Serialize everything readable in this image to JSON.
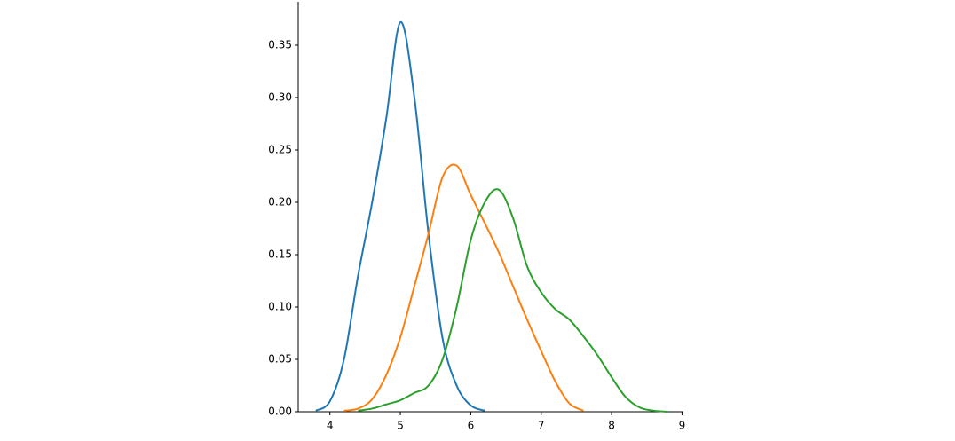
{
  "chart_data": {
    "type": "line",
    "x": [
      3.8,
      4.0,
      4.2,
      4.4,
      4.6,
      4.8,
      5.0,
      5.2,
      5.4,
      5.6,
      5.8,
      6.0,
      6.2,
      6.4,
      6.6,
      6.8,
      7.0,
      7.2,
      7.4,
      7.6,
      7.8,
      8.0,
      8.2,
      8.4,
      8.6,
      8.8
    ],
    "series": [
      {
        "color": "#1f77b4",
        "values": [
          0.001,
          0.01,
          0.05,
          0.13,
          0.2,
          0.28,
          0.372,
          0.3,
          0.17,
          0.07,
          0.025,
          0.006,
          0.001,
          null,
          null,
          null,
          null,
          null,
          null,
          null,
          null,
          null,
          null,
          null,
          null,
          null
        ]
      },
      {
        "color": "#ff7f0e",
        "values": [
          null,
          null,
          0.001,
          0.003,
          0.012,
          0.035,
          0.071,
          0.12,
          0.17,
          0.224,
          0.235,
          0.207,
          0.18,
          0.152,
          0.12,
          0.088,
          0.058,
          0.029,
          0.008,
          0.001,
          null,
          null,
          null,
          null,
          null,
          null
        ]
      },
      {
        "color": "#2ca02c",
        "values": [
          null,
          null,
          null,
          0.001,
          0.003,
          0.007,
          0.011,
          0.018,
          0.025,
          0.05,
          0.1,
          0.164,
          0.2,
          0.212,
          0.185,
          0.139,
          0.114,
          0.098,
          0.088,
          0.072,
          0.054,
          0.033,
          0.014,
          0.004,
          0.001,
          0.0
        ]
      }
    ],
    "xlim": [
      3.55,
      9.02
    ],
    "ylim": [
      0,
      0.3915
    ],
    "xticks": [
      4,
      5,
      6,
      7,
      8,
      9
    ],
    "yticks": [
      {
        "value": 0,
        "label": "0.00"
      },
      {
        "value": 0.05,
        "label": "0.05"
      },
      {
        "value": 0.1,
        "label": "0.10"
      },
      {
        "value": 0.15,
        "label": "0.15"
      },
      {
        "value": 0.2,
        "label": "0.20"
      },
      {
        "value": 0.25,
        "label": "0.25"
      },
      {
        "value": 0.3,
        "label": "0.30"
      },
      {
        "value": 0.35,
        "label": "0.35"
      }
    ],
    "grid": false
  }
}
